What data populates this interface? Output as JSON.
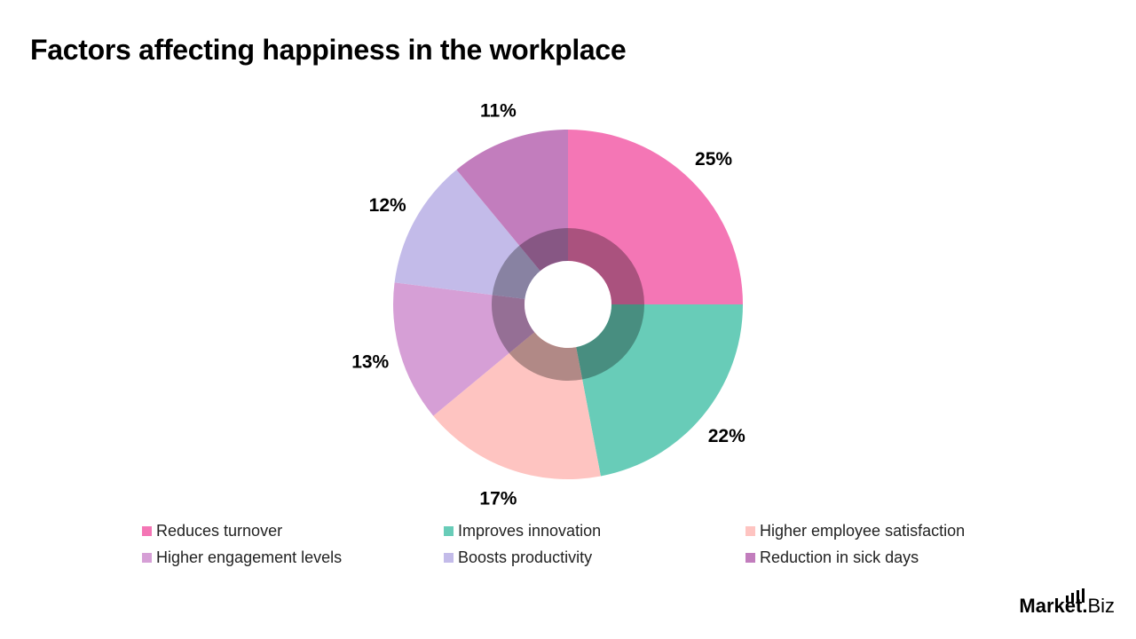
{
  "title": "Factors affecting happiness in the workplace",
  "chart_data": {
    "type": "pie",
    "variant": "donut-with-inner-shaded-ring",
    "title": "Factors affecting happiness in the workplace",
    "start_angle": "12 o'clock",
    "direction": "clockwise",
    "categories": [
      "Reduces turnover",
      "Improves innovation",
      "Higher employee satisfaction",
      "Higher engagement levels",
      "Boosts productivity",
      "Reduction in sick days"
    ],
    "values": [
      25,
      22,
      17,
      13,
      12,
      11
    ],
    "labels": [
      "25%",
      "22%",
      "17%",
      "13%",
      "12%",
      "11%"
    ],
    "colors": [
      "#f476b5",
      "#68ccb8",
      "#fec4c1",
      "#d69fd6",
      "#c3bbe9",
      "#c27dbd"
    ],
    "unit": "%",
    "legend_position": "bottom",
    "grid": false
  },
  "legend": [
    {
      "label": "Reduces turnover",
      "color": "#f476b5"
    },
    {
      "label": "Improves innovation",
      "color": "#68ccb8"
    },
    {
      "label": "Higher employee satisfaction",
      "color": "#fec4c1"
    },
    {
      "label": "Higher engagement levels",
      "color": "#d69fd6"
    },
    {
      "label": "Boosts productivity",
      "color": "#c3bbe9"
    },
    {
      "label": "Reduction in sick days",
      "color": "#c27dbd"
    }
  ],
  "logo": {
    "strong": "Market",
    "light": "Biz",
    "dot": "."
  }
}
